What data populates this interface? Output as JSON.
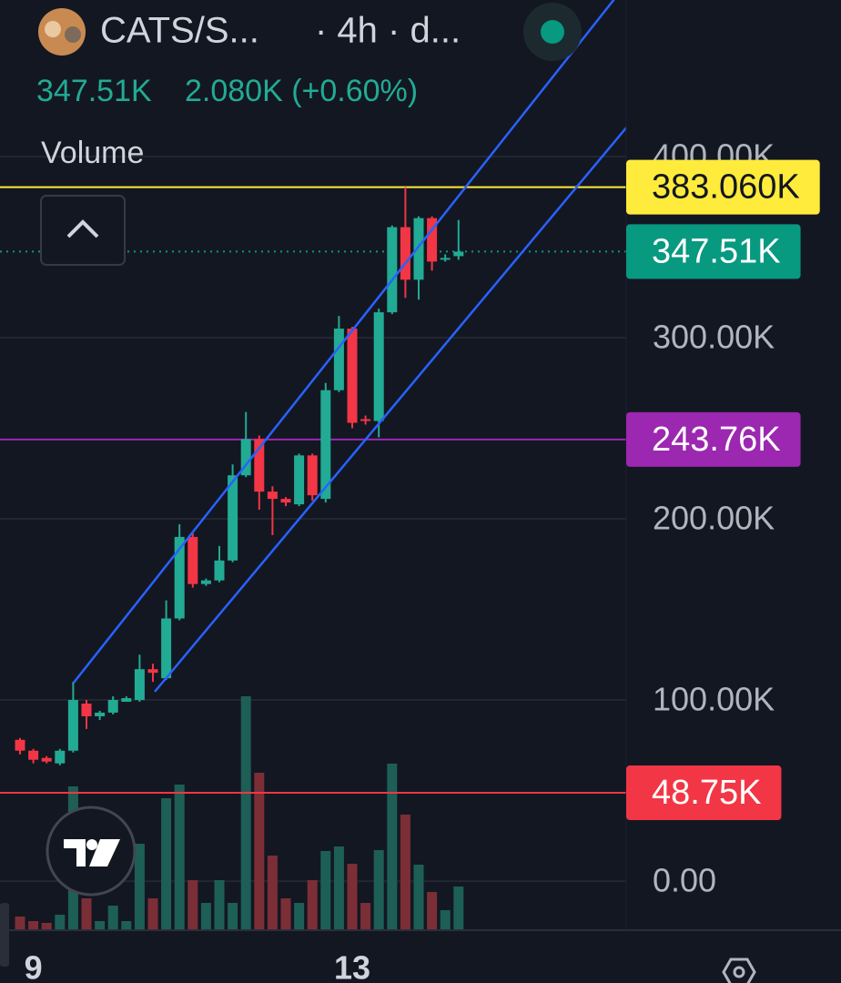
{
  "header": {
    "symbol": "CATS/S...",
    "interval": "· 4h · d...",
    "price": "347.51K",
    "change": "2.080K (+0.60%)",
    "indicator": "Volume"
  },
  "chart_data": {
    "type": "candlestick",
    "categories": [
      null,
      "9",
      null,
      null,
      null,
      null,
      null,
      null,
      null,
      null,
      null,
      null,
      null,
      null,
      null,
      null,
      null,
      null,
      null,
      null,
      null,
      null,
      null,
      null,
      null,
      "13",
      null,
      null,
      null,
      null,
      null,
      null,
      null,
      null
    ],
    "open": [
      78000,
      72000,
      68000,
      65000,
      72000,
      98000,
      91000,
      93000,
      99000,
      100000,
      117000,
      112000,
      145000,
      190000,
      164000,
      166000,
      177000,
      224000,
      244000,
      215000,
      211000,
      208000,
      235000,
      211000,
      271000,
      305000,
      255000,
      254000,
      314000,
      361000,
      332000,
      366000,
      343000,
      345000
    ],
    "high": [
      79000,
      73000,
      69000,
      73000,
      110000,
      100000,
      94000,
      102000,
      102000,
      125000,
      120000,
      155000,
      197000,
      192000,
      167000,
      185000,
      230000,
      259000,
      246000,
      218000,
      212000,
      236000,
      236000,
      275000,
      312000,
      306000,
      257000,
      316000,
      362000,
      383060,
      367000,
      367000,
      346000,
      365000
    ],
    "low": [
      70000,
      65000,
      65000,
      64000,
      71000,
      84000,
      89000,
      92000,
      99000,
      99000,
      110000,
      111000,
      144000,
      162000,
      163000,
      165000,
      176000,
      223000,
      205000,
      191000,
      207000,
      207000,
      210000,
      209000,
      270000,
      250000,
      252000,
      245000,
      313000,
      322000,
      321000,
      337000,
      342000,
      343000
    ],
    "close": [
      72000,
      67000,
      66000,
      72000,
      100000,
      91000,
      93000,
      100000,
      101000,
      117000,
      115000,
      145000,
      190000,
      164000,
      166000,
      177000,
      224000,
      244000,
      215000,
      211000,
      209000,
      235000,
      213000,
      271000,
      305000,
      253000,
      254000,
      314000,
      361000,
      332000,
      366000,
      342000,
      344000,
      347510
    ],
    "volume": [
      15,
      10,
      8,
      17,
      158,
      35,
      10,
      27,
      10,
      95,
      35,
      145,
      160,
      55,
      30,
      55,
      30,
      257,
      173,
      82,
      35,
      30,
      55,
      87,
      92,
      73,
      30,
      88,
      183,
      127,
      72,
      42,
      22,
      48
    ],
    "up_color": "#22ab94",
    "down_color": "#f23645",
    "volume_up_color": "#1d5f56",
    "volume_down_color": "#7c2e37",
    "ylim": [
      -27100,
      486400
    ],
    "yticks": [
      {
        "value": 0,
        "label": "0.00"
      },
      {
        "value": 100000,
        "label": "100.00K"
      },
      {
        "value": 200000,
        "label": "200.00K"
      },
      {
        "value": 300000,
        "label": "300.00K"
      },
      {
        "value": 400000,
        "label": "400.00K"
      }
    ],
    "grid": true,
    "price_lines": [
      {
        "value": 383060,
        "label": "383.060K",
        "color": "#ffeb3b",
        "text_color": "#131722",
        "style": "solid"
      },
      {
        "value": 347510,
        "label": "347.51K",
        "color": "#089981",
        "text_color": "#ffffff",
        "style": "dotted"
      },
      {
        "value": 243760,
        "label": "243.76K",
        "color": "#9c27b0",
        "text_color": "#ffffff",
        "style": "solid"
      },
      {
        "value": 48750,
        "label": "48.75K",
        "color": "#f23645",
        "text_color": "#ffffff",
        "style": "solid"
      }
    ]
  }
}
